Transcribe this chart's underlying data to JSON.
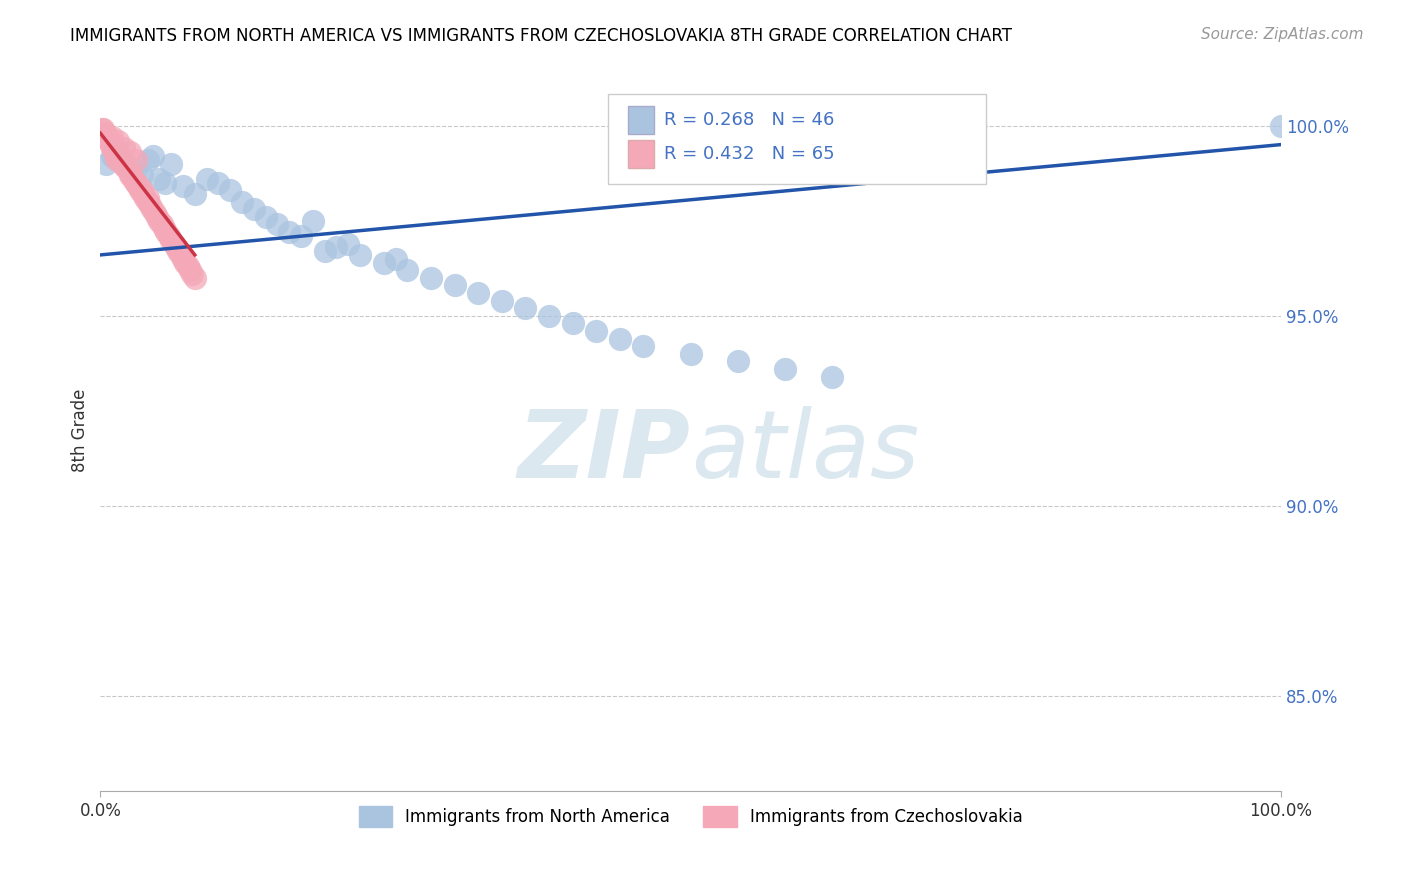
{
  "title": "IMMIGRANTS FROM NORTH AMERICA VS IMMIGRANTS FROM CZECHOSLOVAKIA 8TH GRADE CORRELATION CHART",
  "source": "Source: ZipAtlas.com",
  "ylabel": "8th Grade",
  "R_blue": 0.268,
  "N_blue": 46,
  "R_pink": 0.432,
  "N_pink": 65,
  "blue_color": "#aac4e0",
  "pink_color": "#f4a8b8",
  "blue_line_color": "#2255aa",
  "pink_line_color": "#cc3344",
  "watermark_color": "#dce8f0",
  "legend_blue_label": "Immigrants from North America",
  "legend_pink_label": "Immigrants from Czechoslovakia",
  "xlim": [
    0.0,
    1.0
  ],
  "ylim": [
    0.825,
    1.015
  ],
  "y_ticks": [
    0.85,
    0.9,
    0.95,
    1.0
  ],
  "y_tick_labels": [
    "85.0%",
    "90.0%",
    "95.0%",
    "100.0%"
  ],
  "blue_line_x": [
    0.0,
    1.0
  ],
  "blue_line_y": [
    0.966,
    0.995
  ],
  "pink_line_x": [
    0.0,
    0.08
  ],
  "pink_line_y": [
    0.998,
    0.966
  ],
  "blue_scatter_x": [
    0.005,
    0.01,
    0.015,
    0.02,
    0.025,
    0.03,
    0.035,
    0.04,
    0.045,
    0.05,
    0.055,
    0.06,
    0.07,
    0.08,
    0.09,
    0.1,
    0.11,
    0.12,
    0.13,
    0.14,
    0.16,
    0.18,
    0.2,
    0.22,
    0.24,
    0.26,
    0.28,
    0.3,
    0.32,
    0.34,
    0.36,
    0.38,
    0.4,
    0.42,
    0.44,
    0.46,
    0.5,
    0.54,
    0.58,
    0.62,
    0.15,
    0.17,
    0.21,
    0.19,
    0.25,
    1.0
  ],
  "blue_scatter_y": [
    0.99,
    0.992,
    0.993,
    0.99,
    0.989,
    0.988,
    0.987,
    0.991,
    0.992,
    0.986,
    0.985,
    0.99,
    0.984,
    0.982,
    0.986,
    0.985,
    0.983,
    0.98,
    0.978,
    0.976,
    0.972,
    0.975,
    0.968,
    0.966,
    0.964,
    0.962,
    0.96,
    0.958,
    0.956,
    0.954,
    0.952,
    0.95,
    0.948,
    0.946,
    0.944,
    0.942,
    0.94,
    0.938,
    0.936,
    0.934,
    0.974,
    0.971,
    0.969,
    0.967,
    0.965,
    1.0
  ],
  "pink_scatter_x": [
    0.002,
    0.004,
    0.006,
    0.008,
    0.01,
    0.012,
    0.014,
    0.016,
    0.018,
    0.02,
    0.022,
    0.024,
    0.026,
    0.028,
    0.03,
    0.032,
    0.034,
    0.036,
    0.038,
    0.04,
    0.042,
    0.044,
    0.046,
    0.048,
    0.05,
    0.052,
    0.054,
    0.056,
    0.058,
    0.06,
    0.062,
    0.064,
    0.066,
    0.068,
    0.07,
    0.072,
    0.074,
    0.076,
    0.078,
    0.08,
    0.01,
    0.015,
    0.02,
    0.025,
    0.03,
    0.003,
    0.005,
    0.007,
    0.009,
    0.011,
    0.013,
    0.015,
    0.017,
    0.019,
    0.021,
    0.025,
    0.03,
    0.035,
    0.04,
    0.01,
    0.012,
    0.014,
    0.002,
    0.001,
    0.003
  ],
  "pink_scatter_y": [
    0.999,
    0.998,
    0.997,
    0.996,
    0.995,
    0.994,
    0.993,
    0.992,
    0.991,
    0.99,
    0.989,
    0.988,
    0.987,
    0.986,
    0.985,
    0.984,
    0.983,
    0.982,
    0.981,
    0.98,
    0.979,
    0.978,
    0.977,
    0.976,
    0.975,
    0.974,
    0.973,
    0.972,
    0.971,
    0.97,
    0.969,
    0.968,
    0.967,
    0.966,
    0.965,
    0.964,
    0.963,
    0.962,
    0.961,
    0.96,
    0.997,
    0.996,
    0.994,
    0.993,
    0.991,
    0.998,
    0.997,
    0.996,
    0.995,
    0.994,
    0.993,
    0.992,
    0.991,
    0.99,
    0.989,
    0.987,
    0.985,
    0.983,
    0.981,
    0.994,
    0.992,
    0.991,
    0.998,
    0.999,
    0.997
  ]
}
